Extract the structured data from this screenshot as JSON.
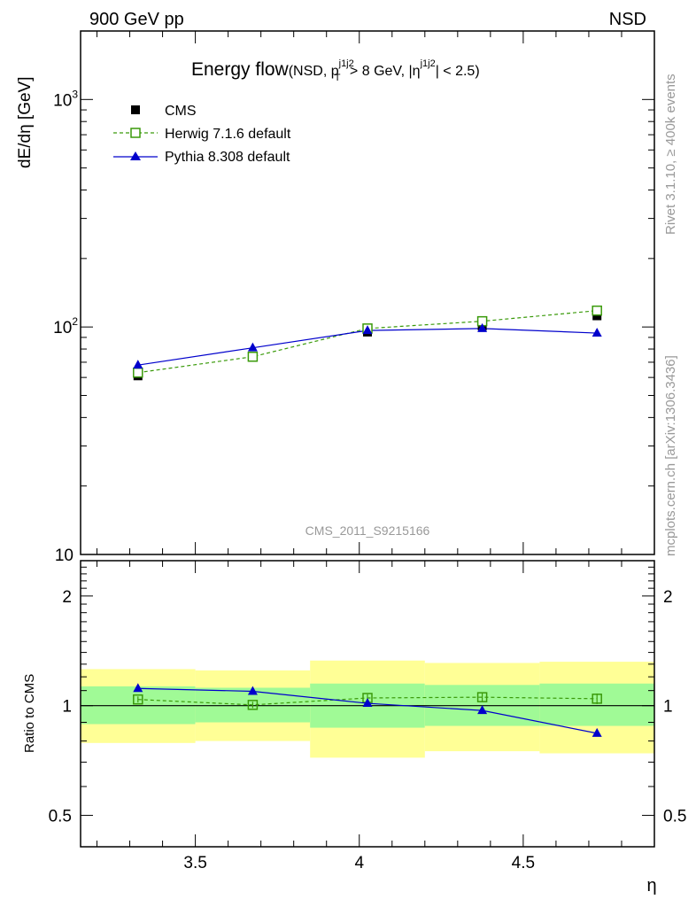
{
  "header": {
    "left_label": "900 GeV pp",
    "right_label": "NSD"
  },
  "side_labels": {
    "rivet": "Rivet 3.1.10, ≥ 400k events",
    "mcplots": "mcplots.cern.ch [arXiv:1306.3436]"
  },
  "watermark": "CMS_2011_S9215166",
  "chart_data": [
    {
      "type": "line",
      "panel": "main",
      "title": "Energy flow",
      "title_suffix": "(NSD, p",
      "title_sup1": "j1j2",
      "title_sub1": "T",
      "title_mid": " > 8 GeV, |η",
      "title_sup2": "j1j2",
      "title_end": "| < 2.5)",
      "ylabel": "dE/dη [GeV]",
      "xlabel": "",
      "yscale": "log",
      "xlim": [
        3.15,
        4.9
      ],
      "ylim": [
        10,
        2000
      ],
      "y_tick_labels": [
        {
          "value": 10,
          "label": "10"
        },
        {
          "value": 100,
          "label": "10",
          "sup": "2"
        },
        {
          "value": 1000,
          "label": "10",
          "sup": "3"
        }
      ],
      "legend_position": "top-left",
      "x": [
        3.325,
        3.675,
        4.025,
        4.375,
        4.725
      ],
      "series": [
        {
          "name": "CMS",
          "style": "data",
          "color": "#000000",
          "values": [
            61.0,
            74.0,
            95.0,
            101.0,
            112.0
          ]
        },
        {
          "name": "Herwig 7.1.6 default",
          "style": "dashed-open-square",
          "color": "#3a9a0a",
          "values": [
            63.0,
            74.0,
            98.5,
            106.0,
            118.0
          ]
        },
        {
          "name": "Pythia 8.308 default",
          "style": "solid-triangle",
          "color": "#0000cc",
          "values": [
            68.0,
            81.0,
            96.5,
            98.5,
            94.0
          ]
        }
      ]
    },
    {
      "type": "line",
      "panel": "ratio",
      "ylabel": "Ratio to CMS",
      "xlabel": "η",
      "yscale": "log",
      "xlim": [
        3.15,
        4.9
      ],
      "ylim": [
        0.41,
        2.5
      ],
      "y_tick_labels": [
        {
          "value": 0.5,
          "label": "0.5"
        },
        {
          "value": 1,
          "label": "1"
        },
        {
          "value": 2,
          "label": "2"
        }
      ],
      "x_tick_labels": [
        {
          "value": 3.5,
          "label": "3.5"
        },
        {
          "value": 4,
          "label": "4"
        },
        {
          "value": 4.5,
          "label": "4.5"
        }
      ],
      "x_bins": [
        [
          3.15,
          3.5
        ],
        [
          3.5,
          3.85
        ],
        [
          3.85,
          4.2
        ],
        [
          4.2,
          4.55
        ],
        [
          4.55,
          4.9
        ]
      ],
      "band_1sigma": [
        [
          0.89,
          1.13
        ],
        [
          0.9,
          1.12
        ],
        [
          0.87,
          1.15
        ],
        [
          0.88,
          1.14
        ],
        [
          0.88,
          1.15
        ]
      ],
      "band_2sigma": [
        [
          0.79,
          1.26
        ],
        [
          0.8,
          1.25
        ],
        [
          0.72,
          1.33
        ],
        [
          0.75,
          1.31
        ],
        [
          0.74,
          1.32
        ]
      ],
      "band_colors": {
        "inner": "#a0fa96",
        "outer": "#ffff96"
      },
      "x": [
        3.325,
        3.675,
        4.025,
        4.375,
        4.725
      ],
      "series": [
        {
          "name": "Herwig 7.1.6 default",
          "style": "dashed-open-square",
          "color": "#3a9a0a",
          "values": [
            1.04,
            1.005,
            1.05,
            1.055,
            1.045
          ],
          "errors": [
            0.02,
            0.02,
            0.025,
            0.03,
            0.035
          ]
        },
        {
          "name": "Pythia 8.308 default",
          "style": "solid-triangle",
          "color": "#0000cc",
          "values": [
            1.115,
            1.095,
            1.015,
            0.97,
            0.84
          ]
        }
      ]
    }
  ]
}
